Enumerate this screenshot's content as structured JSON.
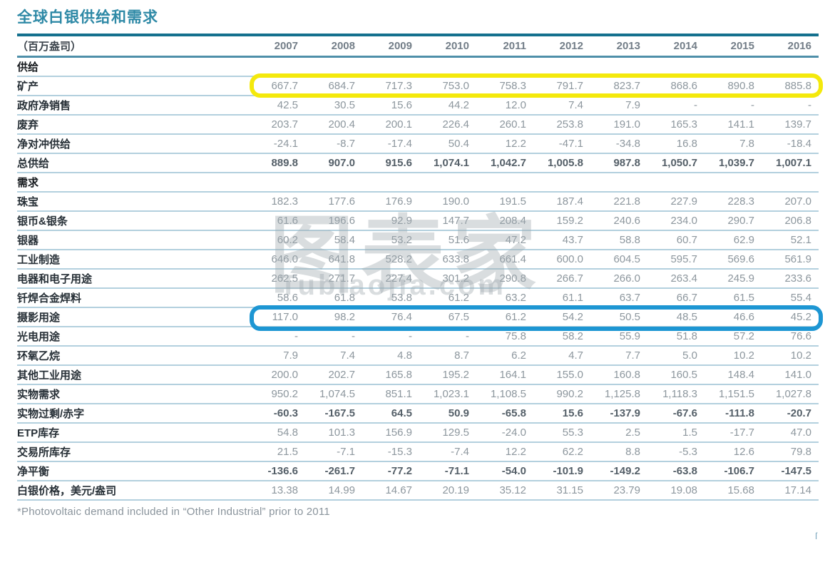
{
  "title": "全球白银供给和需求",
  "unit_label": "（百万盎司）",
  "footnote": "*Photovoltaic demand included in “Other Industrial” prior to 2011",
  "watermark": {
    "text": "图表家",
    "subtext": "Tubiaojia.com"
  },
  "stray_mark": "ſ",
  "colors": {
    "title-color": "#2e89a6",
    "rule-dark": "#14708e",
    "rule-mid": "#4e8fa9",
    "row-line": "#b3d0de",
    "label-color": "#262f36",
    "value-color": "#8d979e",
    "bold-value-color": "#545f68",
    "year-color": "#737e88",
    "hl-yellow": "#f4e90c",
    "hl-blue": "#1d96d3"
  },
  "table": {
    "years": [
      "2007",
      "2008",
      "2009",
      "2010",
      "2011",
      "2012",
      "2013",
      "2014",
      "2015",
      "2016"
    ],
    "rows": [
      {
        "name": "supply-section",
        "label": "供给",
        "section": true,
        "bold": false,
        "highlight": null,
        "values": []
      },
      {
        "name": "mine-production",
        "label": "矿产",
        "section": false,
        "bold": false,
        "highlight": "yellow",
        "values": [
          "667.7",
          "684.7",
          "717.3",
          "753.0",
          "758.3",
          "791.7",
          "823.7",
          "868.6",
          "890.8",
          "885.8"
        ]
      },
      {
        "name": "net-government-sales",
        "label": "政府净销售",
        "section": false,
        "bold": false,
        "highlight": null,
        "values": [
          "42.5",
          "30.5",
          "15.6",
          "44.2",
          "12.0",
          "7.4",
          "7.9",
          "-",
          "-",
          "-"
        ]
      },
      {
        "name": "scrap",
        "label": "废弃",
        "section": false,
        "bold": false,
        "highlight": null,
        "values": [
          "203.7",
          "200.4",
          "200.1",
          "226.4",
          "260.1",
          "253.8",
          "191.0",
          "165.3",
          "141.1",
          "139.7"
        ]
      },
      {
        "name": "net-hedging-supply",
        "label": "净对冲供给",
        "section": false,
        "bold": false,
        "highlight": null,
        "values": [
          "-24.1",
          "-8.7",
          "-17.4",
          "50.4",
          "12.2",
          "-47.1",
          "-34.8",
          "16.8",
          "7.8",
          "-18.4"
        ]
      },
      {
        "name": "total-supply",
        "label": "总供给",
        "section": false,
        "bold": true,
        "highlight": null,
        "values": [
          "889.8",
          "907.0",
          "915.6",
          "1,074.1",
          "1,042.7",
          "1,005.8",
          "987.8",
          "1,050.7",
          "1,039.7",
          "1,007.1"
        ]
      },
      {
        "name": "demand-section",
        "label": "需求",
        "section": true,
        "bold": false,
        "highlight": null,
        "values": []
      },
      {
        "name": "jewelry",
        "label": "珠宝",
        "section": false,
        "bold": false,
        "highlight": null,
        "values": [
          "182.3",
          "177.6",
          "176.9",
          "190.0",
          "191.5",
          "187.4",
          "221.8",
          "227.9",
          "228.3",
          "207.0"
        ]
      },
      {
        "name": "coins-and-bars",
        "label": "银币&银条",
        "section": false,
        "bold": false,
        "highlight": null,
        "values": [
          "61.6",
          "196.6",
          "92.9",
          "147.7",
          "208.4",
          "159.2",
          "240.6",
          "234.0",
          "290.7",
          "206.8"
        ]
      },
      {
        "name": "silverware",
        "label": "银器",
        "section": false,
        "bold": false,
        "highlight": null,
        "values": [
          "60.2",
          "58.4",
          "53.2",
          "51.6",
          "47.2",
          "43.7",
          "58.8",
          "60.7",
          "62.9",
          "52.1"
        ]
      },
      {
        "name": "industrial-fabrication",
        "label": "工业制造",
        "section": false,
        "bold": false,
        "highlight": null,
        "values": [
          "646.0",
          "641.8",
          "528.2",
          "633.8",
          "661.4",
          "600.0",
          "604.5",
          "595.7",
          "569.6",
          "561.9"
        ]
      },
      {
        "name": "electrical-and-electronics",
        "label": "电器和电子用途",
        "section": false,
        "bold": false,
        "highlight": null,
        "values": [
          "262.5",
          "271.7",
          "227.4",
          "301.2",
          "290.8",
          "266.7",
          "266.0",
          "263.4",
          "245.9",
          "233.6"
        ]
      },
      {
        "name": "brazing-alloys-solders",
        "label": "钎焊合金焊料",
        "section": false,
        "bold": false,
        "highlight": null,
        "values": [
          "58.6",
          "61.8",
          "53.8",
          "61.2",
          "63.2",
          "61.1",
          "63.7",
          "66.7",
          "61.5",
          "55.4"
        ]
      },
      {
        "name": "photography",
        "label": "摄影用途",
        "section": false,
        "bold": false,
        "highlight": "blue",
        "values": [
          "117.0",
          "98.2",
          "76.4",
          "67.5",
          "61.2",
          "54.2",
          "50.5",
          "48.5",
          "46.6",
          "45.2"
        ]
      },
      {
        "name": "photovoltaic",
        "label": "光电用途",
        "section": false,
        "bold": false,
        "highlight": null,
        "values": [
          "-",
          "-",
          "-",
          "-",
          "75.8",
          "58.2",
          "55.9",
          "51.8",
          "57.2",
          "76.6"
        ]
      },
      {
        "name": "ethylene-oxide",
        "label": "环氧乙烷",
        "section": false,
        "bold": false,
        "highlight": null,
        "values": [
          "7.9",
          "7.4",
          "4.8",
          "8.7",
          "6.2",
          "4.7",
          "7.7",
          "5.0",
          "10.2",
          "10.2"
        ]
      },
      {
        "name": "other-industrial",
        "label": "其他工业用途",
        "section": false,
        "bold": false,
        "highlight": null,
        "values": [
          "200.0",
          "202.7",
          "165.8",
          "195.2",
          "164.1",
          "155.0",
          "160.8",
          "160.5",
          "148.4",
          "141.0"
        ]
      },
      {
        "name": "physical-demand",
        "label": "实物需求",
        "section": false,
        "bold": false,
        "highlight": null,
        "values": [
          "950.2",
          "1,074.5",
          "851.1",
          "1,023.1",
          "1,108.5",
          "990.2",
          "1,125.8",
          "1,118.3",
          "1,151.5",
          "1,027.8"
        ]
      },
      {
        "name": "physical-surplus-deficit",
        "label": "实物过剩/赤字",
        "section": false,
        "bold": true,
        "highlight": null,
        "values": [
          "-60.3",
          "-167.5",
          "64.5",
          "50.9",
          "-65.8",
          "15.6",
          "-137.9",
          "-67.6",
          "-111.8",
          "-20.7"
        ]
      },
      {
        "name": "etp-inventory",
        "label": "ETP库存",
        "section": false,
        "bold": false,
        "highlight": null,
        "values": [
          "54.8",
          "101.3",
          "156.9",
          "129.5",
          "-24.0",
          "55.3",
          "2.5",
          "1.5",
          "-17.7",
          "47.0"
        ]
      },
      {
        "name": "exchange-inventory",
        "label": "交易所库存",
        "section": false,
        "bold": false,
        "highlight": null,
        "values": [
          "21.5",
          "-7.1",
          "-15.3",
          "-7.4",
          "12.2",
          "62.2",
          "8.8",
          "-5.3",
          "12.6",
          "79.8"
        ]
      },
      {
        "name": "net-balance",
        "label": "净平衡",
        "section": false,
        "bold": true,
        "highlight": null,
        "values": [
          "-136.6",
          "-261.7",
          "-77.2",
          "-71.1",
          "-54.0",
          "-101.9",
          "-149.2",
          "-63.8",
          "-106.7",
          "-147.5"
        ]
      },
      {
        "name": "silver-price",
        "label": "白银价格，美元/盎司",
        "section": false,
        "bold": false,
        "highlight": null,
        "values": [
          "13.38",
          "14.99",
          "14.67",
          "20.19",
          "35.12",
          "31.15",
          "23.79",
          "19.08",
          "15.68",
          "17.14"
        ]
      }
    ]
  },
  "chart_data": {
    "type": "table",
    "title": "全球白银供给和需求",
    "unit": "百万盎司",
    "categories": [
      2007,
      2008,
      2009,
      2010,
      2011,
      2012,
      2013,
      2014,
      2015,
      2016
    ],
    "series": [
      {
        "name": "矿产",
        "values": [
          667.7,
          684.7,
          717.3,
          753.0,
          758.3,
          791.7,
          823.7,
          868.6,
          890.8,
          885.8
        ]
      },
      {
        "name": "政府净销售",
        "values": [
          42.5,
          30.5,
          15.6,
          44.2,
          12.0,
          7.4,
          7.9,
          null,
          null,
          null
        ]
      },
      {
        "name": "废弃",
        "values": [
          203.7,
          200.4,
          200.1,
          226.4,
          260.1,
          253.8,
          191.0,
          165.3,
          141.1,
          139.7
        ]
      },
      {
        "name": "净对冲供给",
        "values": [
          -24.1,
          -8.7,
          -17.4,
          50.4,
          12.2,
          -47.1,
          -34.8,
          16.8,
          7.8,
          -18.4
        ]
      },
      {
        "name": "总供给",
        "values": [
          889.8,
          907.0,
          915.6,
          1074.1,
          1042.7,
          1005.8,
          987.8,
          1050.7,
          1039.7,
          1007.1
        ]
      },
      {
        "name": "珠宝",
        "values": [
          182.3,
          177.6,
          176.9,
          190.0,
          191.5,
          187.4,
          221.8,
          227.9,
          228.3,
          207.0
        ]
      },
      {
        "name": "银币&银条",
        "values": [
          61.6,
          196.6,
          92.9,
          147.7,
          208.4,
          159.2,
          240.6,
          234.0,
          290.7,
          206.8
        ]
      },
      {
        "name": "银器",
        "values": [
          60.2,
          58.4,
          53.2,
          51.6,
          47.2,
          43.7,
          58.8,
          60.7,
          62.9,
          52.1
        ]
      },
      {
        "name": "工业制造",
        "values": [
          646.0,
          641.8,
          528.2,
          633.8,
          661.4,
          600.0,
          604.5,
          595.7,
          569.6,
          561.9
        ]
      },
      {
        "name": "电器和电子用途",
        "values": [
          262.5,
          271.7,
          227.4,
          301.2,
          290.8,
          266.7,
          266.0,
          263.4,
          245.9,
          233.6
        ]
      },
      {
        "name": "钎焊合金焊料",
        "values": [
          58.6,
          61.8,
          53.8,
          61.2,
          63.2,
          61.1,
          63.7,
          66.7,
          61.5,
          55.4
        ]
      },
      {
        "name": "摄影用途",
        "values": [
          117.0,
          98.2,
          76.4,
          67.5,
          61.2,
          54.2,
          50.5,
          48.5,
          46.6,
          45.2
        ]
      },
      {
        "name": "光电用途",
        "values": [
          null,
          null,
          null,
          null,
          75.8,
          58.2,
          55.9,
          51.8,
          57.2,
          76.6
        ]
      },
      {
        "name": "环氧乙烷",
        "values": [
          7.9,
          7.4,
          4.8,
          8.7,
          6.2,
          4.7,
          7.7,
          5.0,
          10.2,
          10.2
        ]
      },
      {
        "name": "其他工业用途",
        "values": [
          200.0,
          202.7,
          165.8,
          195.2,
          164.1,
          155.0,
          160.8,
          160.5,
          148.4,
          141.0
        ]
      },
      {
        "name": "实物需求",
        "values": [
          950.2,
          1074.5,
          851.1,
          1023.1,
          1108.5,
          990.2,
          1125.8,
          1118.3,
          1151.5,
          1027.8
        ]
      },
      {
        "name": "实物过剩/赤字",
        "values": [
          -60.3,
          -167.5,
          64.5,
          50.9,
          -65.8,
          15.6,
          -137.9,
          -67.6,
          -111.8,
          -20.7
        ]
      },
      {
        "name": "ETP库存",
        "values": [
          54.8,
          101.3,
          156.9,
          129.5,
          -24.0,
          55.3,
          2.5,
          1.5,
          -17.7,
          47.0
        ]
      },
      {
        "name": "交易所库存",
        "values": [
          21.5,
          -7.1,
          -15.3,
          -7.4,
          12.2,
          62.2,
          8.8,
          -5.3,
          12.6,
          79.8
        ]
      },
      {
        "name": "净平衡",
        "values": [
          -136.6,
          -261.7,
          -77.2,
          -71.1,
          -54.0,
          -101.9,
          -149.2,
          -63.8,
          -106.7,
          -147.5
        ]
      },
      {
        "name": "白银价格，美元/盎司",
        "values": [
          13.38,
          14.99,
          14.67,
          20.19,
          35.12,
          31.15,
          23.79,
          19.08,
          15.68,
          17.14
        ]
      }
    ]
  }
}
